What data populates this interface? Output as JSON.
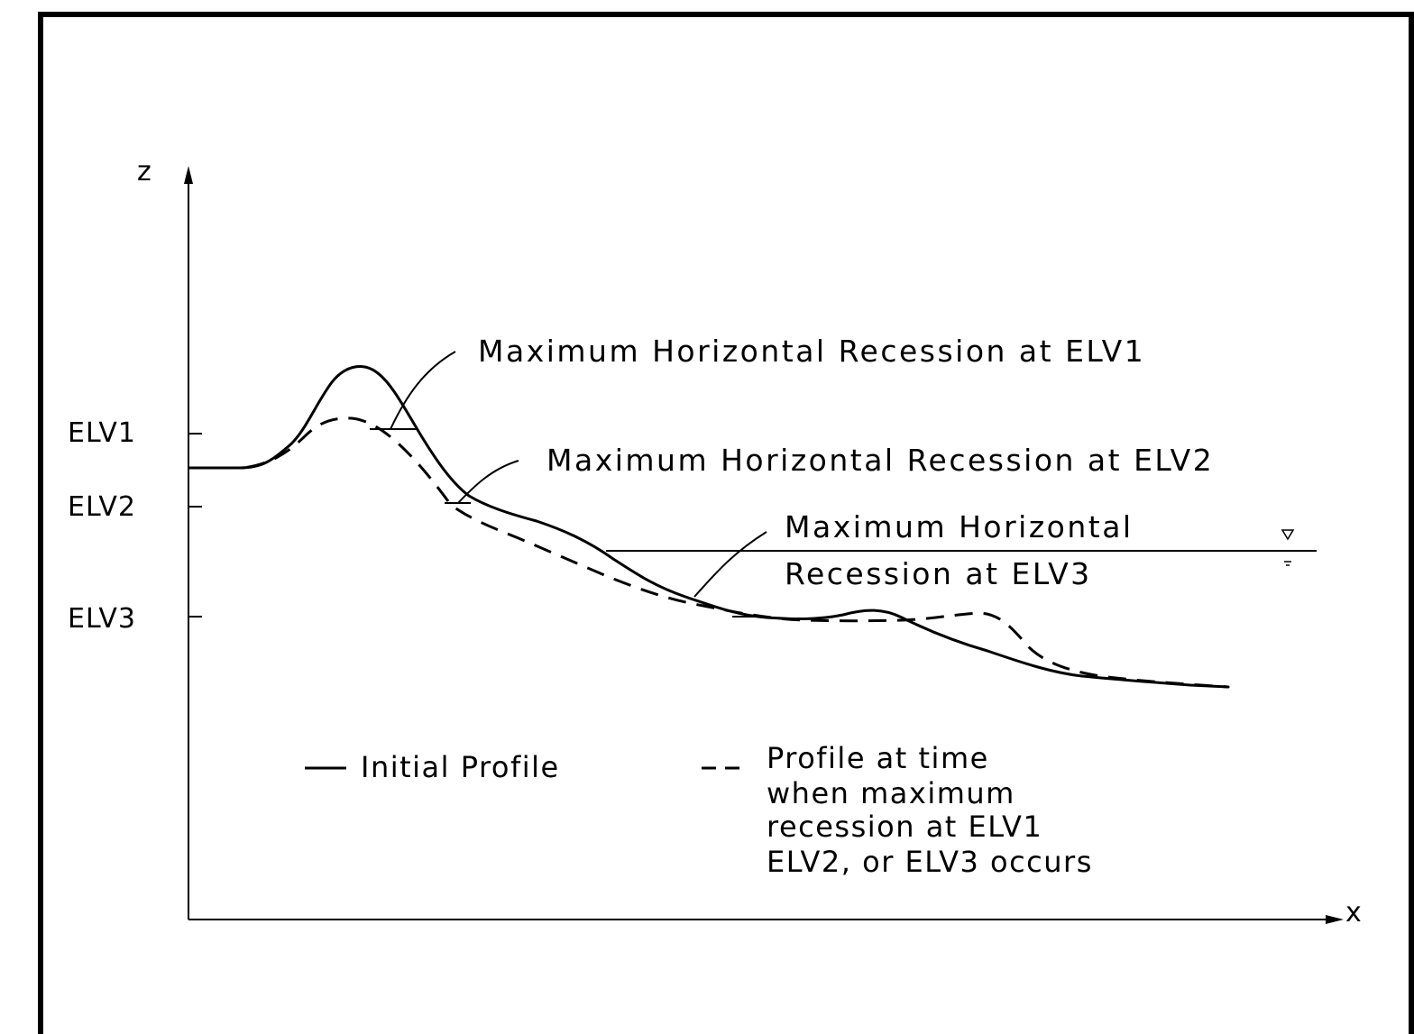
{
  "axes": {
    "x_label": "x",
    "z_label": "z"
  },
  "elevations": [
    {
      "id": "elv1",
      "label": "ELV1"
    },
    {
      "id": "elv2",
      "label": "ELV2"
    },
    {
      "id": "elv3",
      "label": "ELV3"
    }
  ],
  "annotations": {
    "elv1": "Maximum  Horizontal  Recession  at ELV1",
    "elv2": "Maximum  Horizontal  Recession  at ELV2",
    "elv3_line1": "Maximum  Horizontal",
    "elv3_line2": "Recession  at ELV3"
  },
  "legend": {
    "initial_profile": "Initial Profile",
    "recession_profile_lines": [
      "Profile  at  time",
      "when  maximum",
      "recession  at ELV1",
      "ELV2, or ELV3  occurs"
    ]
  }
}
